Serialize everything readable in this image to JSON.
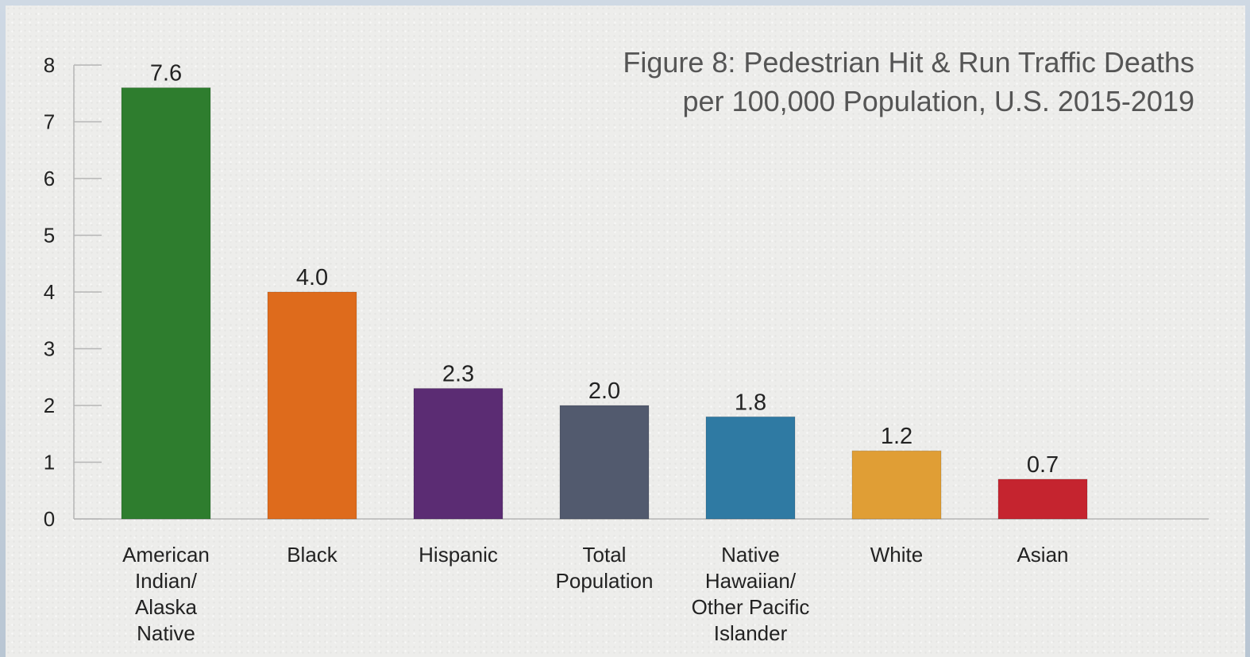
{
  "chart_data": {
    "type": "bar",
    "title_lines": [
      "Figure 8: Pedestrian Hit & Run Traffic Deaths",
      "per 100,000 Population, U.S. 2015-2019"
    ],
    "xlabel": "",
    "ylabel": "",
    "ylim": [
      0,
      8
    ],
    "yticks": [
      "0",
      "1",
      "2",
      "3",
      "4",
      "5",
      "6",
      "7",
      "8"
    ],
    "grid": false,
    "legend": "none",
    "categories": [
      [
        "American",
        "Indian/",
        "Alaska",
        "Native"
      ],
      [
        "Black"
      ],
      [
        "Hispanic"
      ],
      [
        "Total",
        "Population"
      ],
      [
        "Native",
        "Hawaiian/",
        "Other Pacific",
        "Islander"
      ],
      [
        "White"
      ],
      [
        "Asian"
      ]
    ],
    "values": [
      7.6,
      4.0,
      2.3,
      2.0,
      1.8,
      1.2,
      0.7
    ],
    "value_labels": [
      "7.6",
      "4.0",
      "2.3",
      "2.0",
      "1.8",
      "1.2",
      "0.7"
    ],
    "colors": [
      "#2e7d2e",
      "#de6b1c",
      "#5b2c73",
      "#525a6e",
      "#2f7aa3",
      "#e09e35",
      "#c5242f"
    ]
  }
}
